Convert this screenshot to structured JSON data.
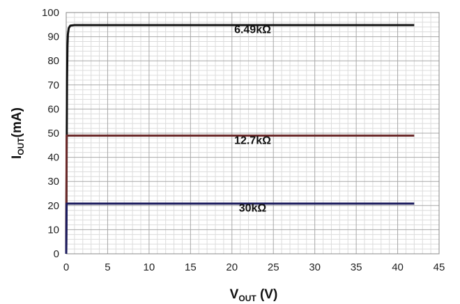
{
  "chart_data": {
    "type": "line",
    "xlabel": {
      "main": "V",
      "sub": "OUT",
      "rest": " (V)"
    },
    "ylabel": {
      "main": "I",
      "sub": "OUT",
      "rest": "(mA)"
    },
    "xlim": [
      0,
      45
    ],
    "ylim": [
      0,
      100
    ],
    "x_ticks": [
      0,
      5,
      10,
      15,
      20,
      25,
      30,
      35,
      40,
      45
    ],
    "y_ticks": [
      0,
      10,
      20,
      30,
      40,
      50,
      60,
      70,
      80,
      90,
      100
    ],
    "grid": true,
    "minor_grid": true,
    "series": [
      {
        "name": "6.49kΩ",
        "color": "#111111",
        "points": [
          [
            0.0,
            0
          ],
          [
            0.05,
            40
          ],
          [
            0.1,
            72
          ],
          [
            0.15,
            86
          ],
          [
            0.2,
            91
          ],
          [
            0.3,
            93.5
          ],
          [
            0.5,
            94.6
          ],
          [
            1,
            94.8
          ],
          [
            42,
            94.8
          ]
        ]
      },
      {
        "name": "12.7kΩ",
        "color": "#6b2a2a",
        "points": [
          [
            0.0,
            0
          ],
          [
            0.05,
            49
          ],
          [
            42,
            49
          ]
        ]
      },
      {
        "name": "30kΩ",
        "color": "#1c1c5e",
        "points": [
          [
            0.0,
            0
          ],
          [
            0.05,
            20.8
          ],
          [
            42,
            20.8
          ]
        ]
      }
    ],
    "annotations": [
      {
        "text": "6.49kΩ",
        "x": 22.5,
        "y": 91.5
      },
      {
        "text": "12.7kΩ",
        "x": 22.5,
        "y": 45.5
      },
      {
        "text": "30kΩ",
        "x": 22.5,
        "y": 17.5
      }
    ]
  }
}
